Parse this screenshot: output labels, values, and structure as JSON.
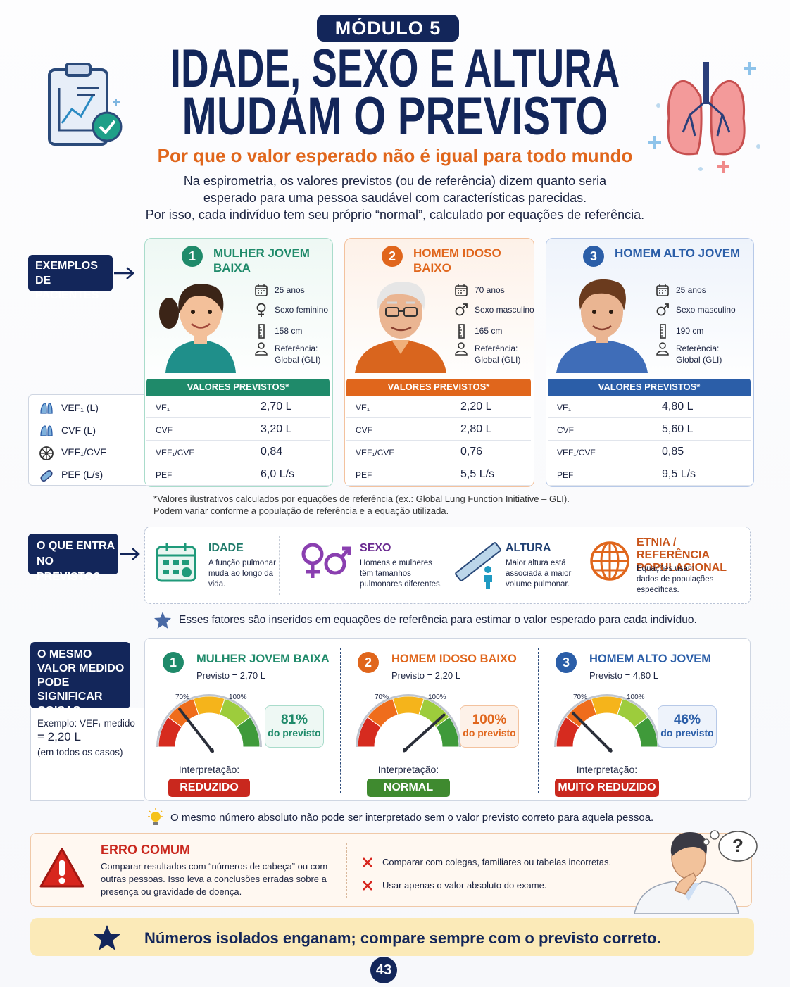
{
  "header": {
    "module": "MÓDULO 5",
    "title": [
      "IDADE, SEXO E ALTURA",
      "MUDAM O PREVISTO"
    ],
    "subtitle": "Por que o valor esperado não é igual para todo mundo",
    "intro": [
      "Na espirometria, os valores previstos (ou de referência) dizem quanto seria",
      "esperado para uma pessoa saudável com características parecidas.",
      "Por isso, cada indivíduo tem seu próprio “normal”, calculado por equações de referência."
    ]
  },
  "patients": {
    "label": "EXEMPLOS DE PACIENTES",
    "legend": [
      "VEF₁ (L)",
      "CVF (L)",
      "VEF₁/CVF",
      "PEF (L/s)"
    ],
    "cards": [
      {
        "number": "1",
        "name": "MULHER JOVEM BAIXA",
        "age": "25 anos",
        "sex": "Sexo feminino",
        "height": "158 cm",
        "reference": "Referência: Global (GLI)",
        "table_title": "VALORES PREVISTOS*",
        "rows": [
          [
            "VE₁",
            "2,70 L"
          ],
          [
            "CVF",
            "3,20 L"
          ],
          [
            "VEF₁/CVF",
            "0,84"
          ],
          [
            "PEF",
            "6,0 L/s"
          ]
        ]
      },
      {
        "number": "2",
        "name": "HOMEM IDOSO BAIXO",
        "age": "70 anos",
        "sex": "Sexo masculino",
        "height": "165 cm",
        "reference": "Referência: Global (GLI)",
        "table_title": "VALORES PREVISTOS*",
        "rows": [
          [
            "VE₁",
            "2,20 L"
          ],
          [
            "CVF",
            "2,80 L"
          ],
          [
            "VEF₁/CVF",
            "0,76"
          ],
          [
            "PEF",
            "5,5 L/s"
          ]
        ]
      },
      {
        "number": "3",
        "name": "HOMEM ALTO JOVEM",
        "age": "25 anos",
        "sex": "Sexo masculino",
        "height": "190 cm",
        "reference": "Referência: Global (GLI)",
        "table_title": "VALORES PREVISTOS*",
        "rows": [
          [
            "VE₁",
            "4,80 L"
          ],
          [
            "CVF",
            "5,60 L"
          ],
          [
            "VEF₁/CVF",
            "0,85"
          ],
          [
            "PEF",
            "9,5 L/s"
          ]
        ]
      }
    ],
    "footnote": [
      "*Valores ilustrativos calculados por equações de referência (ex.: Global Lung Function Initiative – GLI).",
      "Podem variar conforme a população de referência e a equação utilizada."
    ]
  },
  "factors": {
    "label": "O QUE ENTRA NO PREVISTO?",
    "items": [
      {
        "title": "IDADE",
        "text": "A função pulmonar muda ao longo da vida."
      },
      {
        "title": "SEXO",
        "text": "Homens e mulheres têm tamanhos pulmonares diferentes."
      },
      {
        "title": "ALTURA",
        "text": "Maior altura está associada a maior volume pulmonar."
      },
      {
        "title": "ETNIA / REFERÊNCIA POPULACIONAL",
        "text": "Equações usam dados de populações específicas."
      }
    ],
    "note": "Esses fatores são inseridos em equações de referência para estimar o valor esperado para cada indivíduo."
  },
  "same_value": {
    "label": "O MESMO VALOR MEDIDO PODE SIGNIFICAR COISAS DIFERENTES",
    "example": [
      "Exemplo: VEF₁ medido",
      "= 2,20 L",
      "(em todos os casos)"
    ],
    "gauge_ticks": [
      "70%",
      "100%"
    ],
    "percent_suffix": "do previsto",
    "interpretation_label": "Interpretação:",
    "cards": [
      {
        "number": "1",
        "name": "MULHER JOVEM BAIXA",
        "predicted": "Previsto = 2,70 L",
        "percent": "81%",
        "result": "REDUZIDO"
      },
      {
        "number": "2",
        "name": "HOMEM IDOSO BAIXO",
        "predicted": "Previsto = 2,20 L",
        "percent": "100%",
        "result": "NORMAL"
      },
      {
        "number": "3",
        "name": "HOMEM ALTO JOVEM",
        "predicted": "Previsto = 4,80 L",
        "percent": "46%",
        "result": "MUITO REDUZIDO"
      }
    ]
  },
  "tip": "O mesmo número absoluto não pode ser interpretado sem o valor previsto correto para aquela pessoa.",
  "error": {
    "title": "ERRO COMUM",
    "text": "Comparar resultados com “números de cabeça” ou com outras pessoas. Isso leva a conclusões erradas sobre a presença ou gravidade de doença.",
    "bullets": [
      "Comparar com colegas, familiares ou tabelas incorretas.",
      "Usar apenas o valor absoluto do exame."
    ],
    "thought": "?"
  },
  "banner": "Números isolados enganam; compare sempre com o previsto correto.",
  "page_number": "43"
}
